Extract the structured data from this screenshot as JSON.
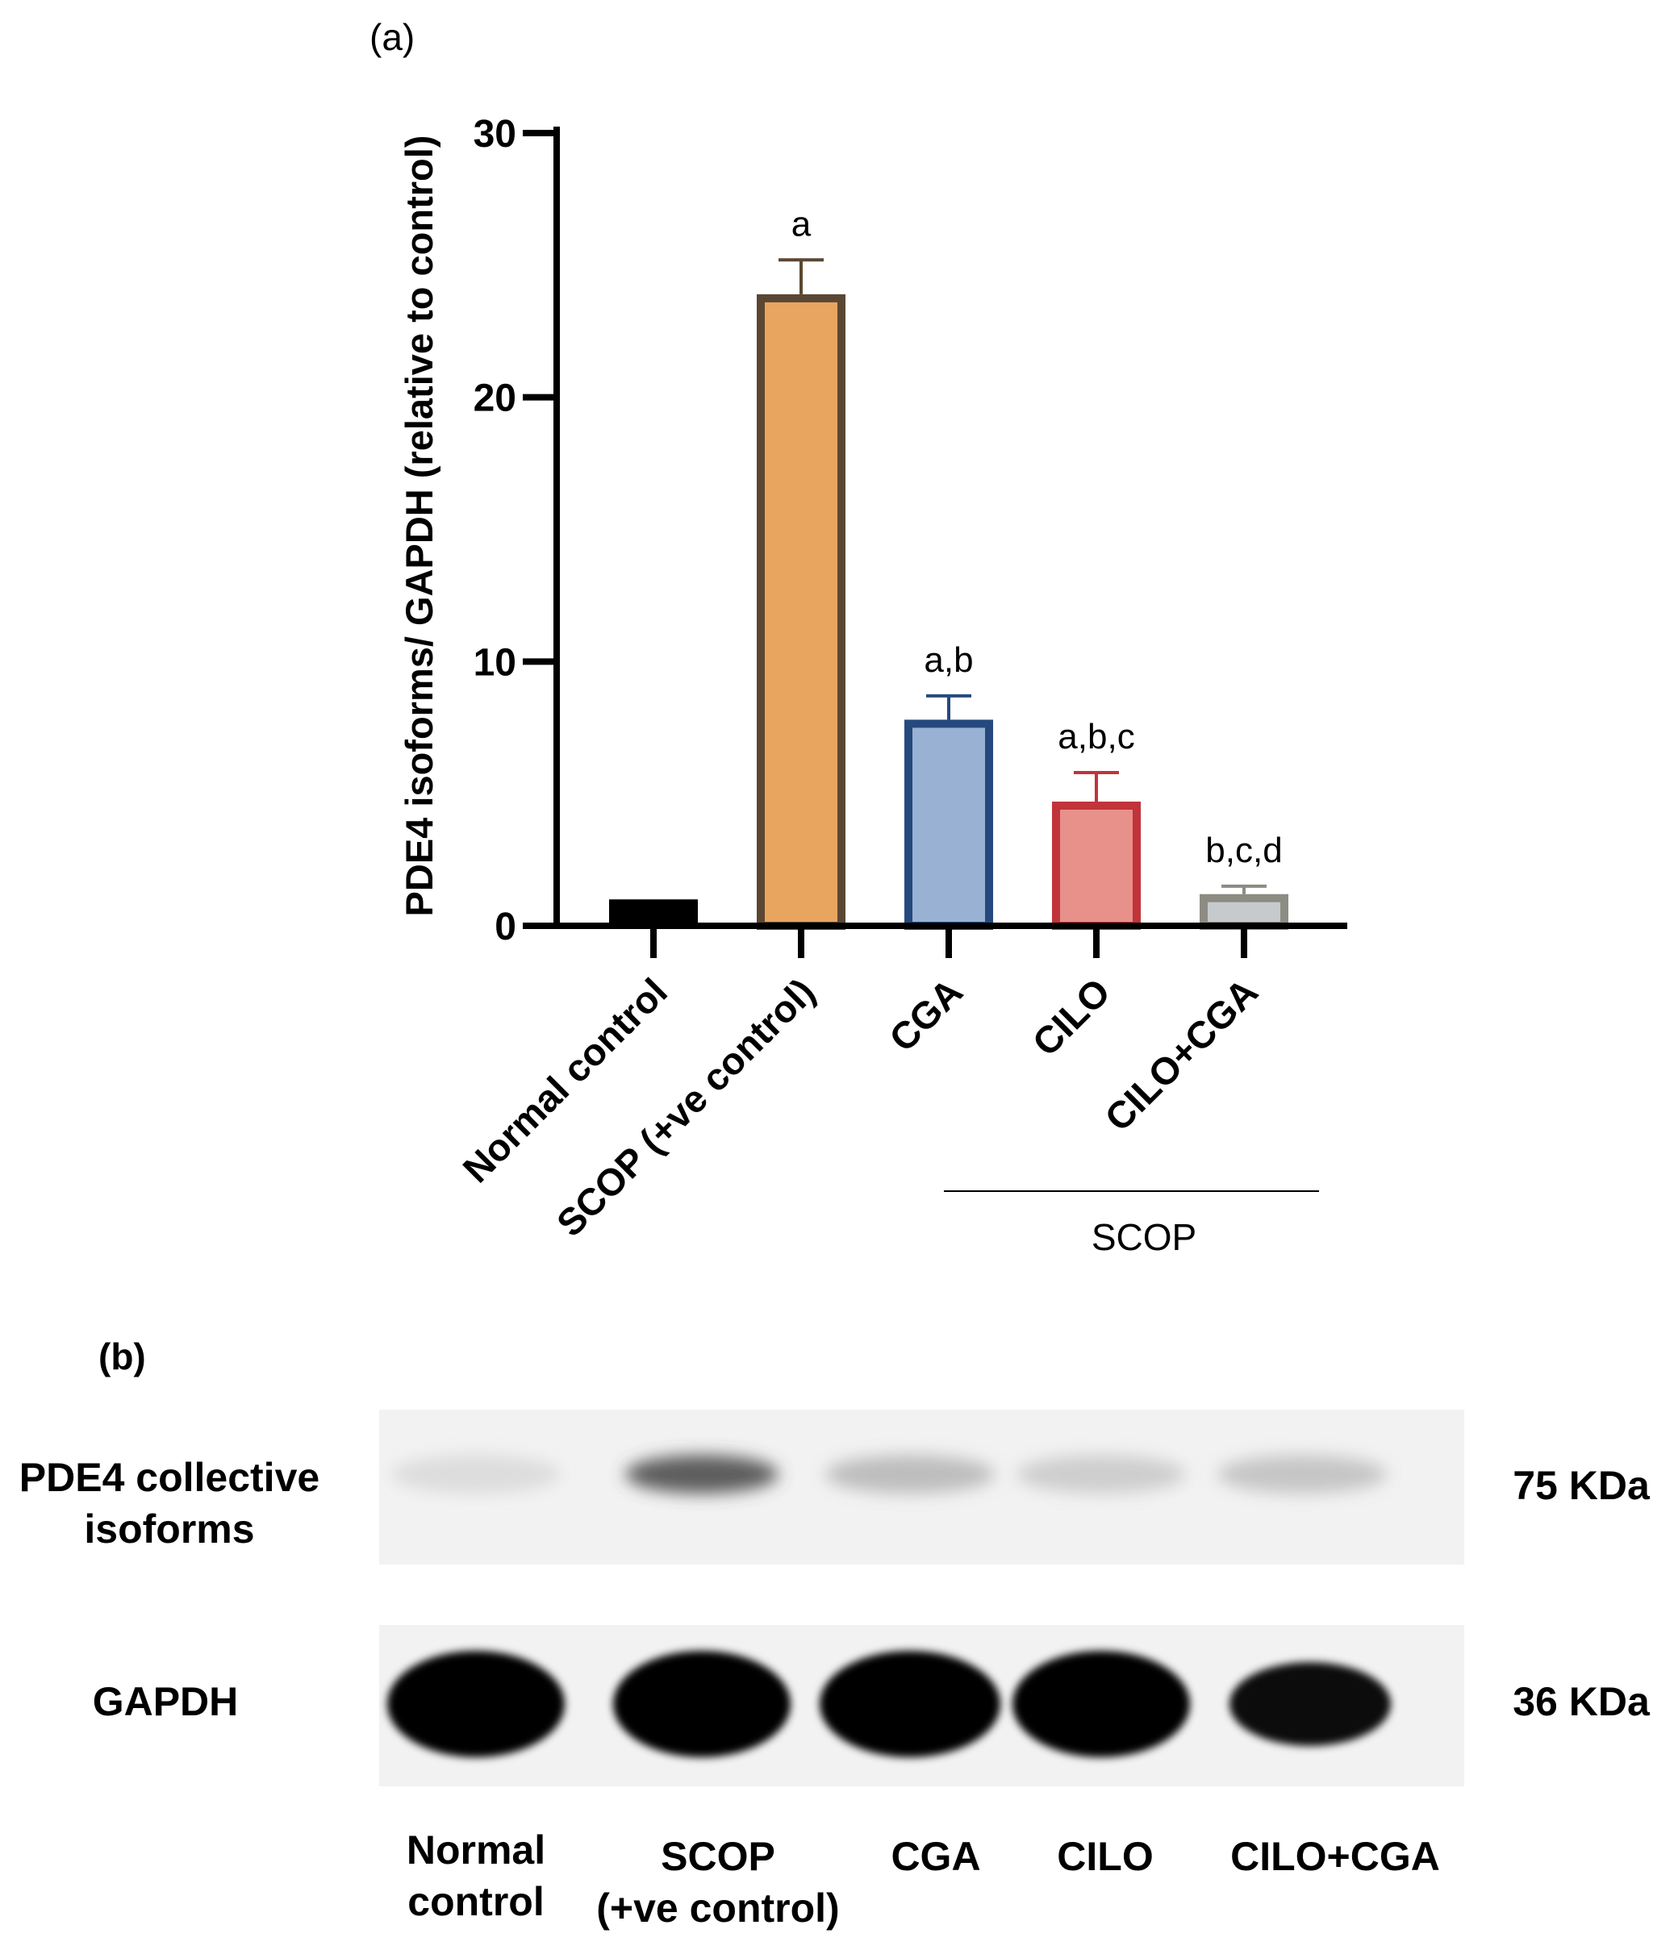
{
  "panel_a": {
    "tag": "(a)",
    "chart_data": {
      "type": "bar",
      "title": "",
      "xlabel": "",
      "ylabel": "PDE4 isoforms/ GAPDH (relative to control)",
      "ylim": [
        0,
        30
      ],
      "yticks": [
        "0",
        "10",
        "20",
        "30"
      ],
      "categories": [
        "Normal control",
        "SCOP (+ve control)",
        "CGA",
        "CILO",
        "CILO+CGA"
      ],
      "values": [
        1.0,
        23.9,
        7.8,
        4.7,
        1.2
      ],
      "errors": [
        0.0,
        1.3,
        0.9,
        1.1,
        0.3
      ],
      "significance": [
        "",
        "a",
        "a,b",
        "a,b,c",
        "b,c,d"
      ],
      "fill_colors": [
        "#000000",
        "#E8A560",
        "#99B1D3",
        "#E8908A",
        "#C6CACD"
      ],
      "edge_colors": [
        "#000000",
        "#5A4733",
        "#25497E",
        "#C0343A",
        "#8C8C83"
      ],
      "group_label": "SCOP",
      "grid": false,
      "legend": "none"
    }
  },
  "panel_b": {
    "tag": "(b)",
    "bands": [
      {
        "label": "PDE4 collective\nisoforms",
        "size": "75 KDa"
      },
      {
        "label": "GAPDH",
        "size": "36 KDa"
      }
    ],
    "lanes": [
      "Normal\ncontrol",
      "SCOP\n(+ve control)",
      "CGA",
      "CILO",
      "CILO+CGA"
    ],
    "pde4_intensity": [
      0.15,
      0.75,
      0.35,
      0.25,
      0.3
    ],
    "gapdh_intensity": [
      1.0,
      1.0,
      1.0,
      1.0,
      0.95
    ]
  }
}
